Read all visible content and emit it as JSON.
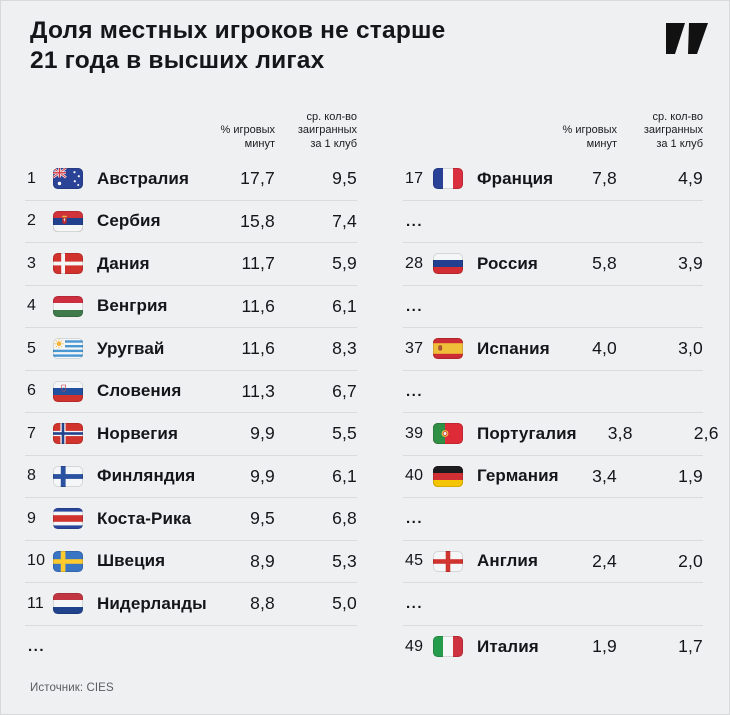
{
  "page": {
    "background": "#eff0f1",
    "separator": "#d9dbdd",
    "title_color": "#15161a",
    "muted_color": "#595d61"
  },
  "header": {
    "title_line1": "Доля местных игроков не старше",
    "title_line2": "21 года в высших лигах",
    "logo_icon": "publisher-logo-icon",
    "logo_color": "#111111"
  },
  "table_columns": {
    "minutes_label_lines": [
      "% игровых",
      "минут"
    ],
    "per_club_label_lines": [
      "ср. кол-во",
      "заигранных",
      "за 1 клуб"
    ]
  },
  "misc": {
    "ellipsis": "..."
  },
  "tables": [
    {
      "name": "ranking-table-left",
      "rows": [
        {
          "rank": "1",
          "flag": "au",
          "flag_icon": "australia-flag-icon",
          "country": "Австралия",
          "minutes": "17,7",
          "per_club": "9,5"
        },
        {
          "rank": "2",
          "flag": "rs",
          "flag_icon": "serbia-flag-icon",
          "country": "Сербия",
          "minutes": "15,8",
          "per_club": "7,4"
        },
        {
          "rank": "3",
          "flag": "dk",
          "flag_icon": "denmark-flag-icon",
          "country": "Дания",
          "minutes": "11,7",
          "per_club": "5,9"
        },
        {
          "rank": "4",
          "flag": "hu",
          "flag_icon": "hungary-flag-icon",
          "country": "Венгрия",
          "minutes": "11,6",
          "per_club": "6,1"
        },
        {
          "rank": "5",
          "flag": "uy",
          "flag_icon": "uruguay-flag-icon",
          "country": "Уругвай",
          "minutes": "11,6",
          "per_club": "8,3"
        },
        {
          "rank": "6",
          "flag": "si",
          "flag_icon": "slovenia-flag-icon",
          "country": "Словения",
          "minutes": "11,3",
          "per_club": "6,7"
        },
        {
          "rank": "7",
          "flag": "no",
          "flag_icon": "norway-flag-icon",
          "country": "Норвегия",
          "minutes": "9,9",
          "per_club": "5,5"
        },
        {
          "rank": "8",
          "flag": "fi",
          "flag_icon": "finland-flag-icon",
          "country": "Финляндия",
          "minutes": "9,9",
          "per_club": "6,1"
        },
        {
          "rank": "9",
          "flag": "cr",
          "flag_icon": "costa-rica-flag-icon",
          "country": "Коста-Рика",
          "minutes": "9,5",
          "per_club": "6,8"
        },
        {
          "rank": "10",
          "flag": "se",
          "flag_icon": "sweden-flag-icon",
          "country": "Швеция",
          "minutes": "8,9",
          "per_club": "5,3"
        },
        {
          "rank": "11",
          "flag": "nl",
          "flag_icon": "netherlands-flag-icon",
          "country": "Нидерланды",
          "minutes": "8,8",
          "per_club": "5,0"
        },
        {
          "ellipsis": true
        }
      ]
    },
    {
      "name": "ranking-table-right",
      "rows": [
        {
          "rank": "17",
          "flag": "fr",
          "flag_icon": "france-flag-icon",
          "country": "Франция",
          "minutes": "7,8",
          "per_club": "4,9"
        },
        {
          "ellipsis": true
        },
        {
          "rank": "28",
          "flag": "ru",
          "flag_icon": "russia-flag-icon",
          "country": "Россия",
          "minutes": "5,8",
          "per_club": "3,9"
        },
        {
          "ellipsis": true
        },
        {
          "rank": "37",
          "flag": "es",
          "flag_icon": "spain-flag-icon",
          "country": "Испания",
          "minutes": "4,0",
          "per_club": "3,0"
        },
        {
          "ellipsis": true
        },
        {
          "rank": "39",
          "flag": "pt",
          "flag_icon": "portugal-flag-icon",
          "country": "Португалия",
          "minutes": "3,8",
          "per_club": "2,6"
        },
        {
          "rank": "40",
          "flag": "de",
          "flag_icon": "germany-flag-icon",
          "country": "Германия",
          "minutes": "3,4",
          "per_club": "1,9"
        },
        {
          "ellipsis": true
        },
        {
          "rank": "45",
          "flag": "en",
          "flag_icon": "england-flag-icon",
          "country": "Англия",
          "minutes": "2,4",
          "per_club": "2,0"
        },
        {
          "ellipsis": true
        },
        {
          "rank": "49",
          "flag": "it",
          "flag_icon": "italy-flag-icon",
          "country": "Италия",
          "minutes": "1,9",
          "per_club": "1,7"
        }
      ]
    }
  ],
  "footer": {
    "source": "Источник: CIES"
  }
}
